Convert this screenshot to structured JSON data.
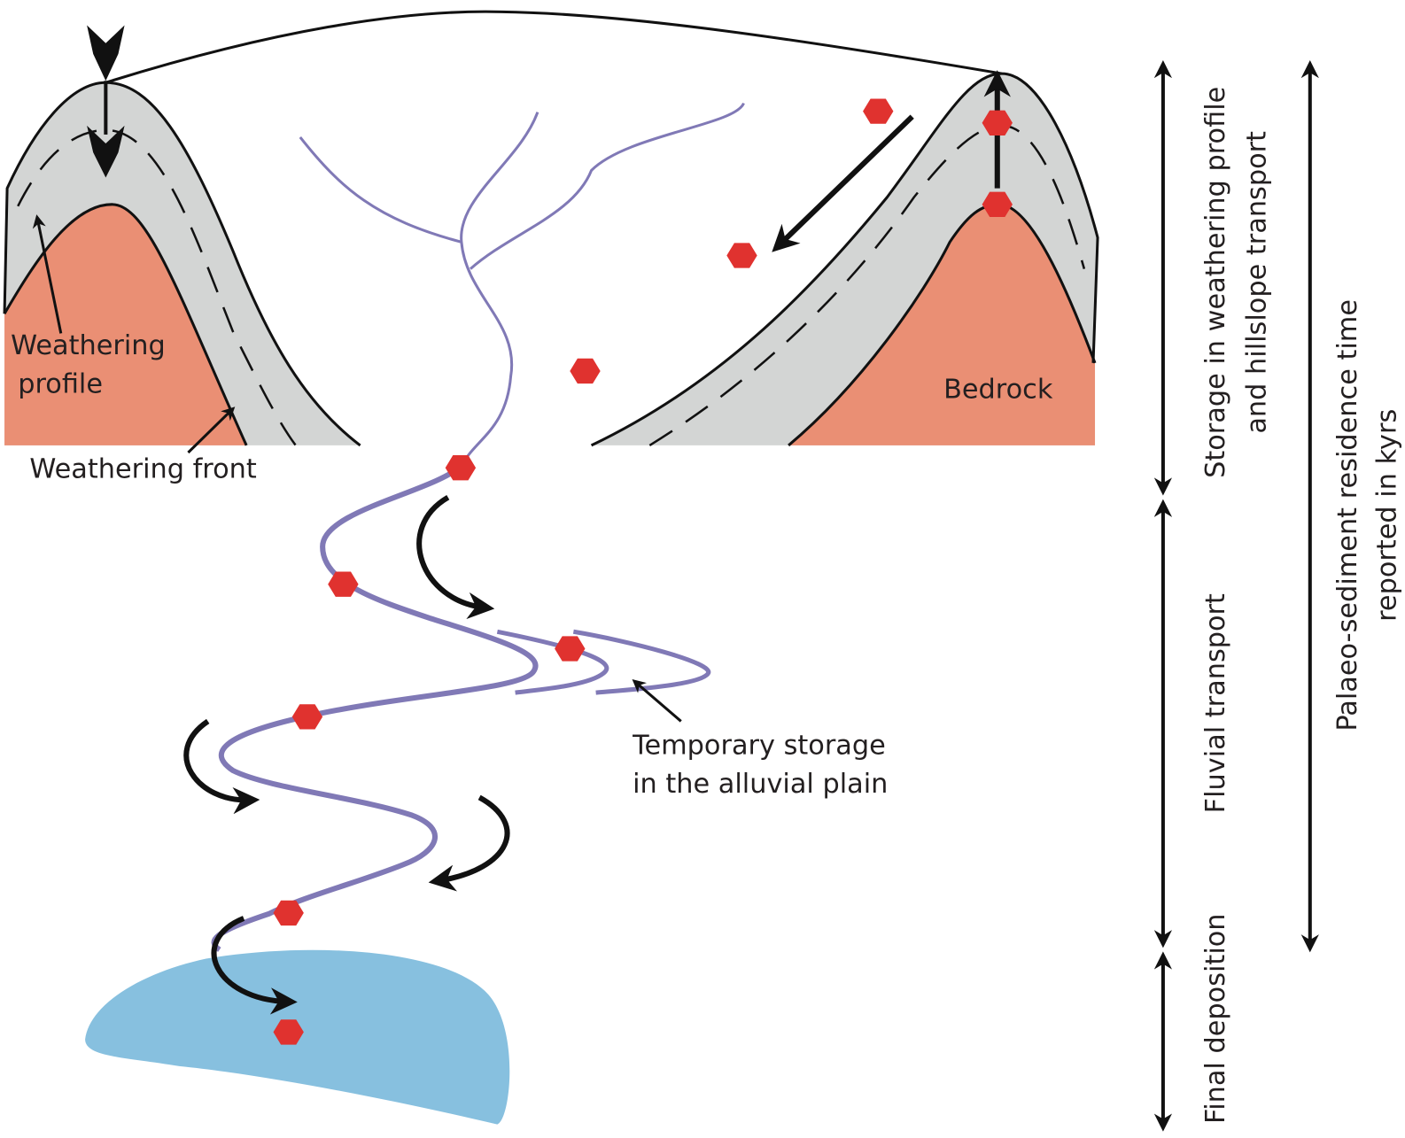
{
  "labels": {
    "weathering_profile": [
      "Weathering",
      "profile"
    ],
    "weathering_front": "Weathering front",
    "bedrock": "Bedrock",
    "temporary_storage": [
      "Temporary storage",
      "in the alluvial plain"
    ],
    "storage_weathering": [
      "Storage in weathering profile",
      "and hillslope  transport"
    ],
    "fluvial_transport": "Fluvial transport",
    "final_deposition": "Final deposition",
    "residence_time": [
      "Palaeo-sediment residence time",
      "reported in kyrs"
    ]
  }
}
